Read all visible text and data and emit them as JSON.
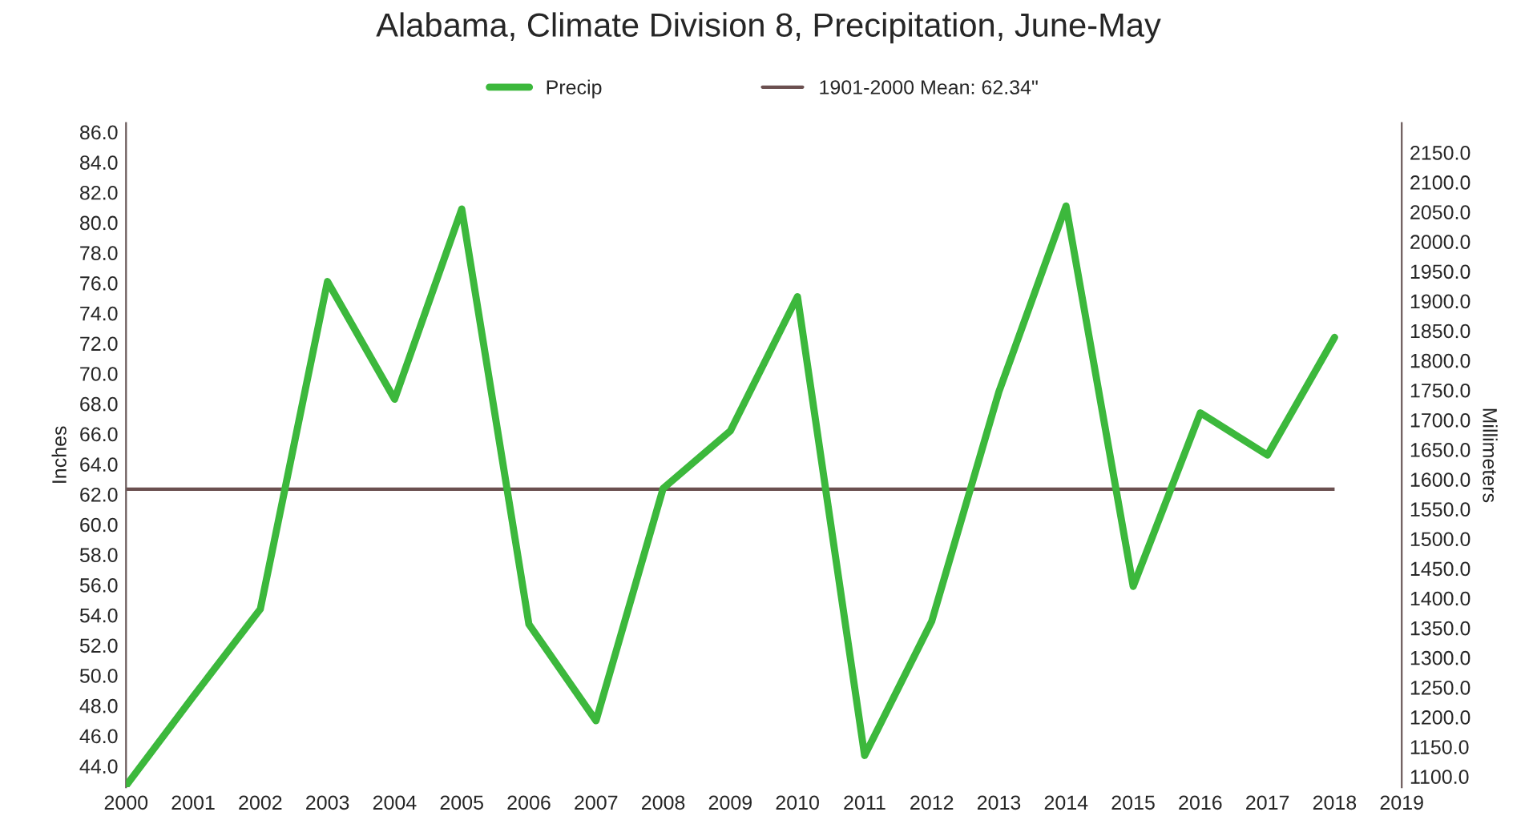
{
  "chart_data": {
    "type": "line",
    "title": "Alabama, Climate Division 8, Precipitation, June-May",
    "ylabel": "Inches",
    "y2label": "Millimeters",
    "x": [
      2000,
      2001,
      2002,
      2003,
      2004,
      2005,
      2006,
      2007,
      2008,
      2009,
      2010,
      2011,
      2012,
      2013,
      2014,
      2015,
      2016,
      2017,
      2018
    ],
    "series": [
      {
        "name": "Precip",
        "color": "#3cb83c",
        "values": [
          42.7,
          48.6,
          54.4,
          76.1,
          68.3,
          80.9,
          53.4,
          47.0,
          62.4,
          66.2,
          75.1,
          44.7,
          53.6,
          68.8,
          81.1,
          55.9,
          67.4,
          64.6,
          72.4
        ]
      }
    ],
    "ref_lines": [
      {
        "axis": "y",
        "value": 62.34,
        "label": "1901-2000 Mean: 62.34\"",
        "color": "#6b5050"
      }
    ],
    "xlim": [
      2000,
      2019
    ],
    "xticks": [
      2000,
      2001,
      2002,
      2003,
      2004,
      2005,
      2006,
      2007,
      2008,
      2009,
      2010,
      2011,
      2012,
      2013,
      2014,
      2015,
      2016,
      2017,
      2018,
      2019
    ],
    "ylim": [
      42.6,
      86.6
    ],
    "yticks": [
      {
        "value": 44,
        "label": "44.0"
      },
      {
        "value": 46,
        "label": "46.0"
      },
      {
        "value": 48,
        "label": "48.0"
      },
      {
        "value": 50,
        "label": "50.0"
      },
      {
        "value": 52,
        "label": "52.0"
      },
      {
        "value": 54,
        "label": "54.0"
      },
      {
        "value": 56,
        "label": "56.0"
      },
      {
        "value": 58,
        "label": "58.0"
      },
      {
        "value": 60,
        "label": "60.0"
      },
      {
        "value": 62,
        "label": "62.0"
      },
      {
        "value": 64,
        "label": "64.0"
      },
      {
        "value": 66,
        "label": "66.0"
      },
      {
        "value": 68,
        "label": "68.0"
      },
      {
        "value": 70,
        "label": "70.0"
      },
      {
        "value": 72,
        "label": "72.0"
      },
      {
        "value": 74,
        "label": "74.0"
      },
      {
        "value": 76,
        "label": "76.0"
      },
      {
        "value": 78,
        "label": "78.0"
      },
      {
        "value": 80,
        "label": "80.0"
      },
      {
        "value": 82,
        "label": "82.0"
      },
      {
        "value": 84,
        "label": "84.0"
      },
      {
        "value": 86,
        "label": "86.0"
      }
    ],
    "y2lim": [
      1082.0,
      2199.6
    ],
    "y2ticks": [
      {
        "value": 1100,
        "label": "1100.0"
      },
      {
        "value": 1150,
        "label": "1150.0"
      },
      {
        "value": 1200,
        "label": "1200.0"
      },
      {
        "value": 1250,
        "label": "1250.0"
      },
      {
        "value": 1300,
        "label": "1300.0"
      },
      {
        "value": 1350,
        "label": "1350.0"
      },
      {
        "value": 1400,
        "label": "1400.0"
      },
      {
        "value": 1450,
        "label": "1450.0"
      },
      {
        "value": 1500,
        "label": "1500.0"
      },
      {
        "value": 1550,
        "label": "1550.0"
      },
      {
        "value": 1600,
        "label": "1600.0"
      },
      {
        "value": 1650,
        "label": "1650.0"
      },
      {
        "value": 1700,
        "label": "1700.0"
      },
      {
        "value": 1750,
        "label": "1750.0"
      },
      {
        "value": 1800,
        "label": "1800.0"
      },
      {
        "value": 1850,
        "label": "1850.0"
      },
      {
        "value": 1900,
        "label": "1900.0"
      },
      {
        "value": 1950,
        "label": "1950.0"
      },
      {
        "value": 2000,
        "label": "2000.0"
      },
      {
        "value": 2050,
        "label": "2050.0"
      },
      {
        "value": 2100,
        "label": "2100.0"
      },
      {
        "value": 2150,
        "label": "2150.0"
      }
    ],
    "grid": false,
    "legend": "top",
    "marker": "none",
    "line_style": "solid"
  }
}
